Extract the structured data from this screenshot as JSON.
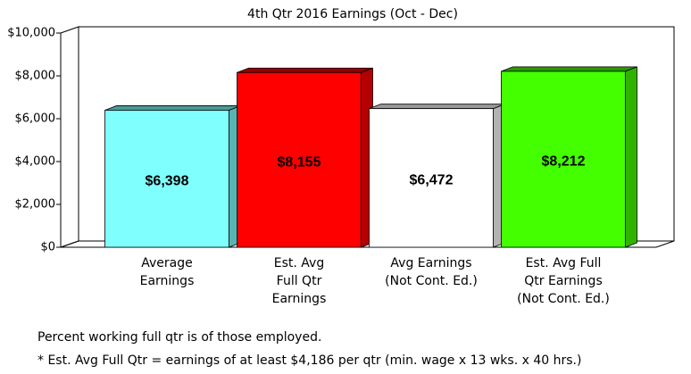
{
  "chart_data": {
    "type": "bar",
    "title": "4th Qtr 2016 Earnings (Oct - Dec)",
    "categories": [
      [
        "Average",
        "Earnings"
      ],
      [
        "Est. Avg",
        "Full Qtr",
        "Earnings"
      ],
      [
        "Avg Earnings",
        "(Not Cont. Ed.)"
      ],
      [
        "Est. Avg Full",
        "Qtr Earnings",
        "(Not Cont. Ed.)"
      ]
    ],
    "values": [
      6398,
      8155,
      6472,
      8212
    ],
    "value_labels": [
      "$6,398",
      "$8,155",
      "$6,472",
      "$8,212"
    ],
    "colors": [
      "#80ffff",
      "#ff0000",
      "#ffffff",
      "#44ff00"
    ],
    "ylim": [
      0,
      10000
    ],
    "yticks": [
      {
        "value": 0,
        "label": "$0"
      },
      {
        "value": 2000,
        "label": "$2,000"
      },
      {
        "value": 4000,
        "label": "$4,000"
      },
      {
        "value": 6000,
        "label": "$6,000"
      },
      {
        "value": 8000,
        "label": "$8,000"
      },
      {
        "value": 10000,
        "label": "$10,000"
      }
    ],
    "notes": [
      "Percent working full qtr is of those employed.",
      "* Est. Avg Full Qtr = earnings of at least $4,186 per qtr (min. wage x 13 wks. x 40 hrs.)"
    ]
  }
}
